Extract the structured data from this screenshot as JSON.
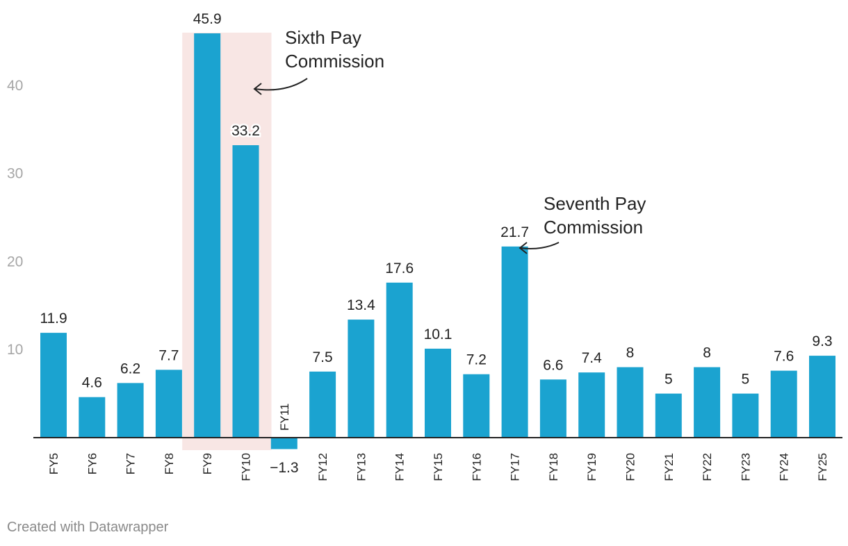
{
  "chart_data": {
    "type": "bar",
    "categories": [
      "FY5",
      "FY6",
      "FY7",
      "FY8",
      "FY9",
      "FY10",
      "FY11",
      "FY12",
      "FY13",
      "FY14",
      "FY15",
      "FY16",
      "FY17",
      "FY18",
      "FY19",
      "FY20",
      "FY21",
      "FY22",
      "FY23",
      "FY24",
      "FY25"
    ],
    "values": [
      11.9,
      4.6,
      6.2,
      7.7,
      45.9,
      33.2,
      -1.3,
      7.5,
      13.4,
      17.6,
      10.1,
      7.2,
      21.7,
      6.6,
      7.4,
      8,
      5,
      8,
      5,
      7.6,
      9.3
    ],
    "value_labels": [
      "11.9",
      "4.6",
      "6.2",
      "7.7",
      "45.9",
      "33.2",
      "−1.3",
      "7.5",
      "13.4",
      "17.6",
      "10.1",
      "7.2",
      "21.7",
      "6.6",
      "7.4",
      "8",
      "5",
      "8",
      "5",
      "7.6",
      "9.3"
    ],
    "yticks": [
      10,
      20,
      30,
      40
    ],
    "ytick_labels": [
      "10",
      "20",
      "30",
      "40"
    ],
    "ylim": [
      -1.3,
      45.9
    ],
    "bar_color": "#1ba3d0",
    "highlight": {
      "categories": [
        "FY9",
        "FY10"
      ],
      "color": "#f8e6e4"
    },
    "annotations": [
      {
        "lines": [
          "Sixth Pay",
          "Commission"
        ],
        "points_to": "FY10"
      },
      {
        "lines": [
          "Seventh Pay",
          "Commission"
        ],
        "points_to": "FY17"
      }
    ],
    "grid": false,
    "legend": "none"
  },
  "footer": {
    "credit": "Created with Datawrapper"
  }
}
